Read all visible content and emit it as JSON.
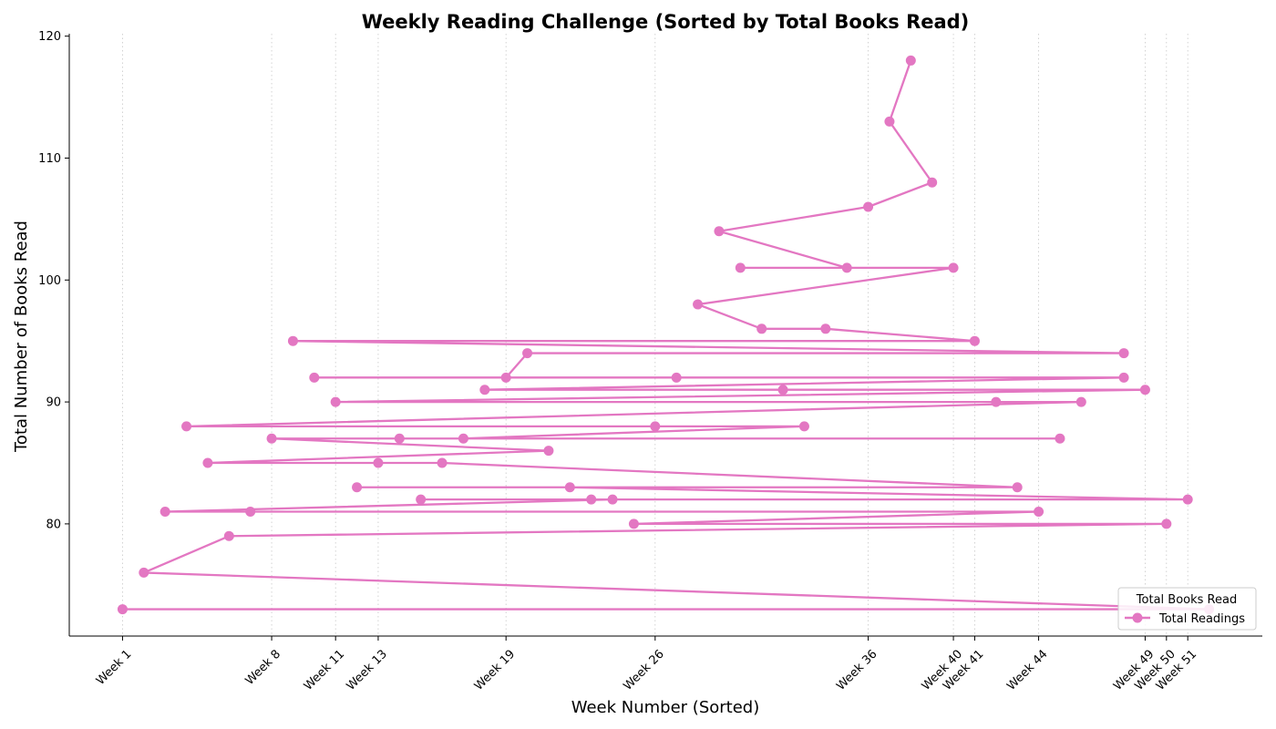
{
  "chart_data": {
    "type": "line",
    "title": "Weekly Reading Challenge (Sorted by Total Books Read)",
    "xlabel": "Week Number (Sorted)",
    "ylabel": "Total Number of Books Read",
    "ylim": [
      70.8,
      120.2
    ],
    "xlim": [
      -2.5,
      53.5
    ],
    "yticks": [
      80,
      90,
      100,
      110,
      120
    ],
    "xticks": [
      {
        "value": 0,
        "label": "Week 1"
      },
      {
        "value": 7,
        "label": "Week 8"
      },
      {
        "value": 10,
        "label": "Week 11"
      },
      {
        "value": 12,
        "label": "Week 13"
      },
      {
        "value": 18,
        "label": "Week 19"
      },
      {
        "value": 25,
        "label": "Week 26"
      },
      {
        "value": 35,
        "label": "Week 36"
      },
      {
        "value": 39,
        "label": "Week 40"
      },
      {
        "value": 40,
        "label": "Week 41"
      },
      {
        "value": 43,
        "label": "Week 44"
      },
      {
        "value": 48,
        "label": "Week 49"
      },
      {
        "value": 49,
        "label": "Week 50"
      },
      {
        "value": 50,
        "label": "Week 51"
      }
    ],
    "grid": "x-dotted",
    "legend": {
      "title": "Total Books Read",
      "position": "lower-right"
    },
    "color": "#e377c2",
    "series": [
      {
        "name": "Total Readings",
        "x": [
          37,
          36,
          38,
          35,
          28,
          34,
          29,
          39,
          27,
          30,
          33,
          40,
          8,
          47,
          19,
          18,
          9,
          26,
          47,
          17,
          31,
          48,
          10,
          41,
          45,
          3,
          25,
          32,
          16,
          13,
          44,
          7,
          20,
          4,
          12,
          15,
          42,
          11,
          21,
          50,
          14,
          22,
          23,
          2,
          6,
          43,
          24,
          49,
          5,
          1,
          51,
          0
        ],
        "y": [
          118,
          113,
          108,
          106,
          104,
          101,
          101,
          101,
          98,
          96,
          96,
          95,
          95,
          94,
          94,
          92,
          92,
          92,
          92,
          91,
          91,
          91,
          90,
          90,
          90,
          88,
          88,
          88,
          87,
          87,
          87,
          87,
          86,
          85,
          85,
          85,
          83,
          83,
          83,
          82,
          82,
          82,
          82,
          81,
          81,
          81,
          80,
          80,
          79,
          76,
          73,
          73
        ]
      }
    ]
  }
}
